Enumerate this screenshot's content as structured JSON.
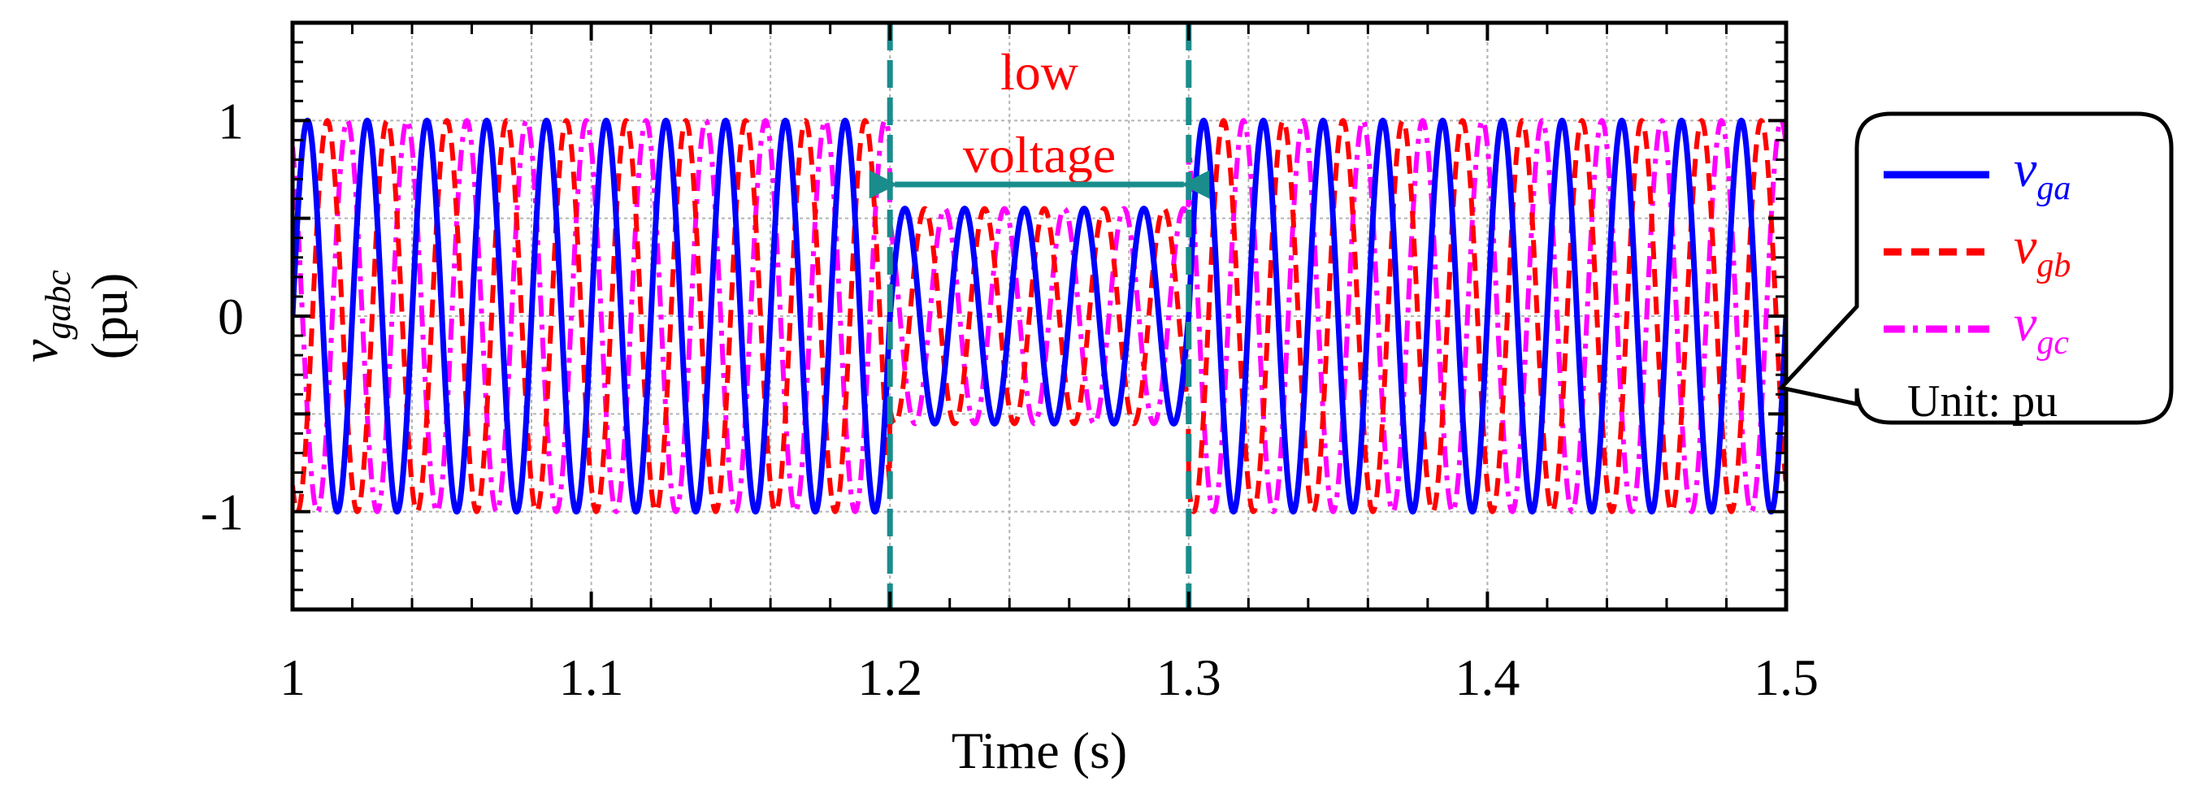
{
  "chart_data": {
    "type": "line",
    "title": "",
    "xlabel": "Time (s)",
    "ylabel_symbol": "v",
    "ylabel_subscript": "gabc",
    "ylabel_unit": "(pu)",
    "xlim": [
      1.0,
      1.5
    ],
    "ylim": [
      -1.5,
      1.5
    ],
    "x_ticks": [
      1.0,
      1.1,
      1.2,
      1.3,
      1.4,
      1.5
    ],
    "x_tick_labels": [
      "1",
      "1.1",
      "1.2",
      "1.3",
      "1.4",
      "1.5"
    ],
    "y_ticks": [
      -1,
      0,
      1
    ],
    "y_tick_labels": [
      "-1",
      "0",
      "1"
    ],
    "grid": true,
    "series": [
      {
        "name": "vga",
        "symbol": "v",
        "subscript": "ga",
        "color": "#0000ff",
        "style": "solid",
        "frequency_hz": 50,
        "phase_deg": 0
      },
      {
        "name": "vgb",
        "symbol": "v",
        "subscript": "gb",
        "color": "#ff0000",
        "style": "dashed",
        "frequency_hz": 50,
        "phase_deg": -120
      },
      {
        "name": "vgc",
        "symbol": "v",
        "subscript": "gc",
        "color": "#ff00ff",
        "style": "dash-dot",
        "frequency_hz": 50,
        "phase_deg": 120
      }
    ],
    "amplitude_profile": [
      {
        "t_start": 1.0,
        "t_end": 1.2,
        "amplitude": 1.0
      },
      {
        "t_start": 1.2,
        "t_end": 1.3,
        "amplitude": 0.55
      },
      {
        "t_start": 1.3,
        "t_end": 1.5,
        "amplitude": 1.0
      }
    ],
    "event_lines": [
      1.2,
      1.3
    ],
    "event_line_color": "#1a8c8c",
    "annotation": {
      "lines": [
        "low",
        "voltage"
      ],
      "color": "#ff0000",
      "arrow_from": 1.2,
      "arrow_to": 1.3,
      "arrow_y": 0.64,
      "arrow_color": "#1a8c8c"
    },
    "legend": {
      "placement": "right",
      "unit_note": "Unit: pu",
      "pointer_x": 1.5,
      "pointer_y": -0.3
    }
  }
}
